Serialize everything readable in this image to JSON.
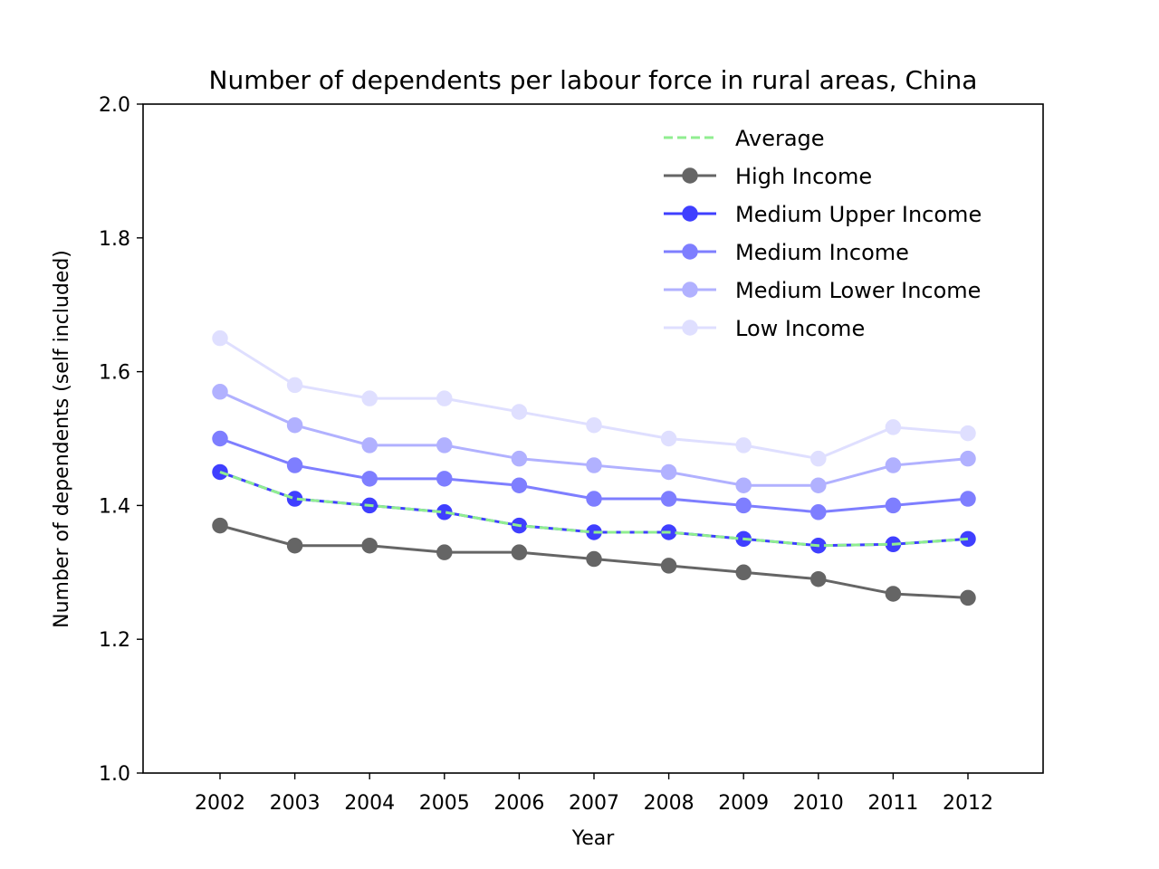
{
  "chart_data": {
    "type": "line",
    "title": "Number of dependents per labour force in rural areas, China",
    "xlabel": "Year",
    "ylabel": "Number of dependents (self included)",
    "x": [
      "2002",
      "2003",
      "2004",
      "2005",
      "2006",
      "2007",
      "2008",
      "2009",
      "2010",
      "2011",
      "2012"
    ],
    "ylim": [
      1.0,
      2.0
    ],
    "yticks": [
      "1.0",
      "1.2",
      "1.4",
      "1.6",
      "1.8",
      "2.0"
    ],
    "grid": false,
    "legend_position": "top-right",
    "series": [
      {
        "name": "Average",
        "style": "dashed",
        "markers": false,
        "color": "#90ee90",
        "opacity": 1,
        "values": [
          1.45,
          1.41,
          1.4,
          1.39,
          1.37,
          1.36,
          1.36,
          1.35,
          1.34,
          1.342,
          1.35
        ]
      },
      {
        "name": "High Income",
        "style": "solid",
        "markers": true,
        "color": "#000000",
        "opacity": 0.6,
        "values": [
          1.37,
          1.34,
          1.34,
          1.33,
          1.33,
          1.32,
          1.31,
          1.3,
          1.29,
          1.268,
          1.262
        ]
      },
      {
        "name": "Medium Upper Income",
        "style": "solid",
        "markers": true,
        "color": "#0000ff",
        "opacity": 0.75,
        "values": [
          1.45,
          1.41,
          1.4,
          1.39,
          1.37,
          1.36,
          1.36,
          1.35,
          1.34,
          1.342,
          1.35
        ]
      },
      {
        "name": "Medium Income",
        "style": "solid",
        "markers": true,
        "color": "#0000ff",
        "opacity": 0.5,
        "values": [
          1.5,
          1.46,
          1.44,
          1.44,
          1.43,
          1.41,
          1.41,
          1.4,
          1.39,
          1.4,
          1.41
        ]
      },
      {
        "name": "Medium Lower Income",
        "style": "solid",
        "markers": true,
        "color": "#0000ff",
        "opacity": 0.3,
        "values": [
          1.57,
          1.52,
          1.49,
          1.49,
          1.47,
          1.46,
          1.45,
          1.43,
          1.43,
          1.46,
          1.47
        ]
      },
      {
        "name": "Low Income",
        "style": "solid",
        "markers": true,
        "color": "#0000ff",
        "opacity": 0.12,
        "values": [
          1.65,
          1.58,
          1.56,
          1.56,
          1.54,
          1.52,
          1.5,
          1.49,
          1.47,
          1.517,
          1.508
        ]
      }
    ]
  }
}
